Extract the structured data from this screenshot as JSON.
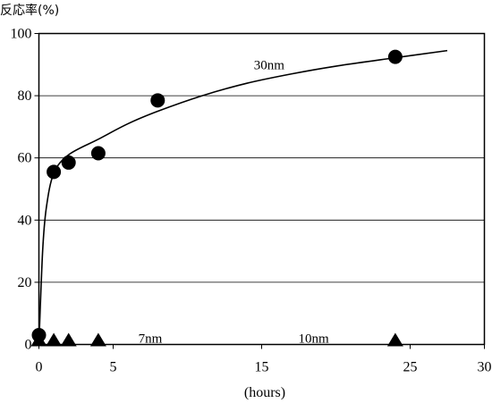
{
  "chart_data": {
    "type": "scatter",
    "ylabel": "反応率(%)",
    "xlabel": "(hours)",
    "xlim": [
      0,
      30
    ],
    "ylim": [
      0,
      100
    ],
    "x_ticks": [
      "0",
      "5",
      "15",
      "25",
      "30"
    ],
    "y_ticks": [
      "0",
      "20",
      "40",
      "60",
      "80",
      "100"
    ],
    "grid": "horizontal",
    "series": [
      {
        "name": "30nm",
        "marker": "circle",
        "points": [
          {
            "x": 0,
            "y": 3
          },
          {
            "x": 1,
            "y": 55.5
          },
          {
            "x": 2,
            "y": 58.5
          },
          {
            "x": 4,
            "y": 61.5
          },
          {
            "x": 8,
            "y": 78.5
          },
          {
            "x": 24,
            "y": 92.5
          }
        ],
        "fit_curve": [
          {
            "x": 0,
            "y": 0
          },
          {
            "x": 0.25,
            "y": 30
          },
          {
            "x": 0.5,
            "y": 44
          },
          {
            "x": 1,
            "y": 55
          },
          {
            "x": 2,
            "y": 61
          },
          {
            "x": 4,
            "y": 66
          },
          {
            "x": 6,
            "y": 71
          },
          {
            "x": 8,
            "y": 75
          },
          {
            "x": 11,
            "y": 80
          },
          {
            "x": 14,
            "y": 84
          },
          {
            "x": 17,
            "y": 87
          },
          {
            "x": 20,
            "y": 89.5
          },
          {
            "x": 24,
            "y": 92.2
          },
          {
            "x": 27.5,
            "y": 94.5
          }
        ]
      },
      {
        "name": "7nm",
        "marker": "triangle",
        "points": [
          {
            "x": 0,
            "y": 0
          },
          {
            "x": 1,
            "y": 0
          },
          {
            "x": 2,
            "y": 0
          },
          {
            "x": 4,
            "y": 0
          }
        ]
      },
      {
        "name": "10nm",
        "marker": "triangle",
        "points": [
          {
            "x": 24,
            "y": 0
          }
        ]
      }
    ],
    "annotations": [
      {
        "text": "30nm",
        "x": 15.5,
        "y": 90
      },
      {
        "text": "7nm",
        "x": 7.5,
        "y": 2
      },
      {
        "text": "10nm",
        "x": 18.5,
        "y": 2
      }
    ]
  }
}
